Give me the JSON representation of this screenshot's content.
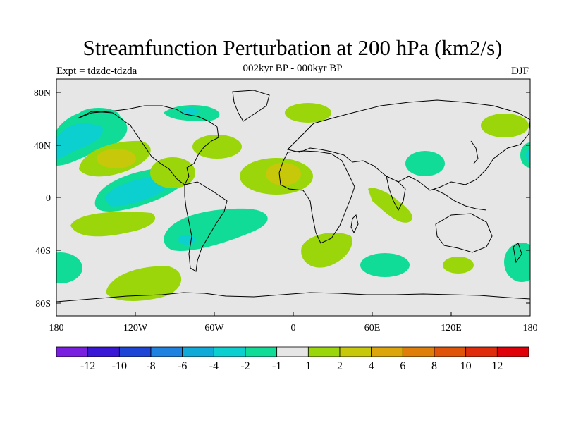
{
  "header": {
    "title": "Streamfunction Perturbation at 200 hPa (km2/s)",
    "subtitle": "002kyr BP - 000kyr BP",
    "left_label": "Expt = tdzdc-tdzda",
    "right_label": "DJF"
  },
  "map": {
    "lon_range": [
      -180,
      180
    ],
    "lat_range": [
      -90,
      90
    ],
    "lat_ticks": [
      "80N",
      "40N",
      "0",
      "40S",
      "80S"
    ],
    "lon_ticks": [
      "180",
      "120W",
      "60W",
      "0",
      "60E",
      "120E",
      "180"
    ]
  },
  "colorbar": {
    "labels": [
      "-12",
      "-10",
      "-8",
      "-6",
      "-4",
      "-2",
      "-1",
      "1",
      "2",
      "4",
      "6",
      "8",
      "10",
      "12"
    ],
    "colors": [
      "#7a1ee0",
      "#3a16d6",
      "#1e46d6",
      "#1e82e0",
      "#10aad8",
      "#0ccfcf",
      "#10dc98",
      "#e6e6e6",
      "#9ad60a",
      "#c8c80a",
      "#dca60a",
      "#e07e0a",
      "#e0540a",
      "#e02c0a",
      "#e0000a"
    ]
  }
}
